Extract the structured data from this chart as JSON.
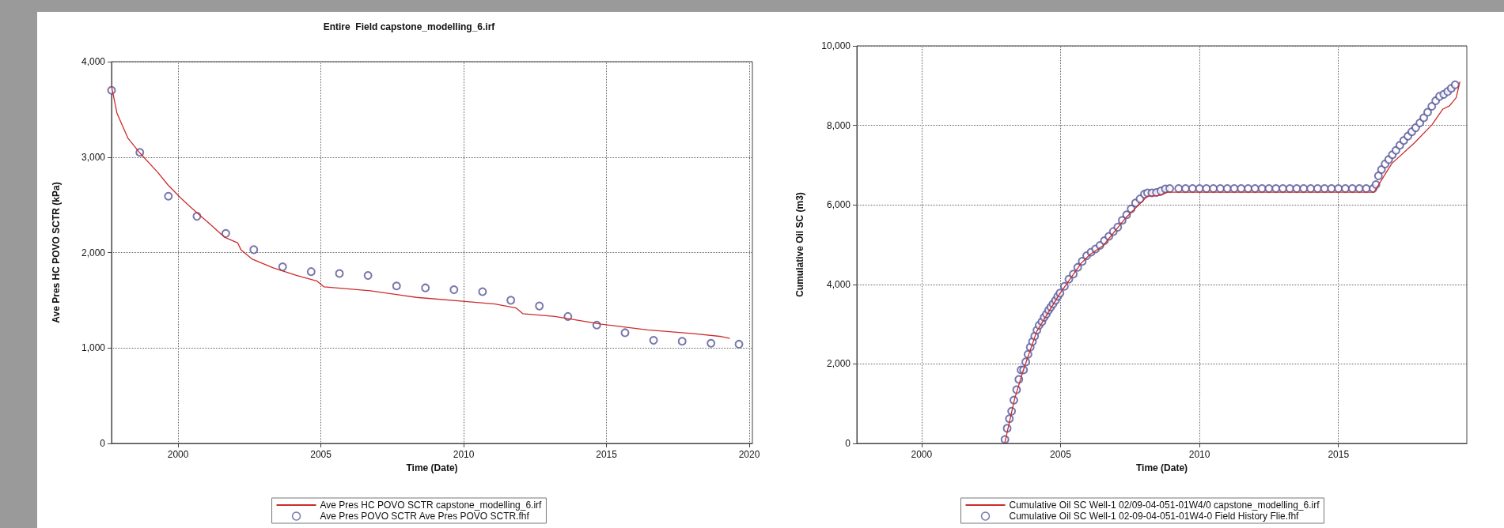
{
  "chart_data": [
    {
      "type": "line",
      "title": "Entire  Field capstone_modelling_6.irf",
      "xlabel": "Time (Date)",
      "ylabel": "Ave Pres HC POVO SCTR (kPa)",
      "xlim": [
        1997.67,
        2020.11
      ],
      "xticks": [
        2000,
        2005,
        2010,
        2015,
        2020
      ],
      "ylim": [
        0,
        4000
      ],
      "yticks": [
        {
          "value": 0,
          "label": "0"
        },
        {
          "value": 1000,
          "label": "1,000"
        },
        {
          "value": 2000,
          "label": "2,000"
        },
        {
          "value": 3000,
          "label": "3,000"
        },
        {
          "value": 4000,
          "label": "4,000"
        }
      ],
      "grid": true,
      "legend": "bottom",
      "series": [
        {
          "name": "Ave Pres HC POVO SCTR capstone_modelling_6.irf",
          "type": "line",
          "color": "#cc2b2b",
          "x": [
            1997.67,
            1997.86,
            1998.24,
            1998.64,
            1999.29,
            1999.64,
            2000.1,
            2000.42,
            2001.07,
            2001.63,
            2002.09,
            2002.2,
            2002.6,
            2003.33,
            2004.14,
            2004.87,
            2005.11,
            2006.73,
            2008.35,
            2009.97,
            2011.1,
            2011.83,
            2012.07,
            2013.2,
            2014.82,
            2016.44,
            2018.06,
            2019.03,
            2019.32
          ],
          "values": [
            3740,
            3460,
            3200,
            3050,
            2840,
            2710,
            2570,
            2480,
            2310,
            2160,
            2100,
            2030,
            1930,
            1840,
            1760,
            1700,
            1640,
            1600,
            1530,
            1490,
            1460,
            1420,
            1360,
            1330,
            1250,
            1190,
            1150,
            1120,
            1100
          ]
        },
        {
          "name": "Ave Pres POVO SCTR Ave Pres POVO SCTR.fhf",
          "type": "scatter",
          "marker": "circle",
          "color": "#55559a",
          "x": [
            1997.67,
            1998.66,
            1999.66,
            2000.66,
            2001.67,
            2002.65,
            2003.66,
            2004.66,
            2005.65,
            2006.65,
            2007.65,
            2008.66,
            2009.66,
            2010.66,
            2011.65,
            2012.65,
            2013.65,
            2014.66,
            2015.65,
            2016.65,
            2017.65,
            2018.66,
            2019.64
          ],
          "values": [
            3700,
            3050,
            2590,
            2380,
            2200,
            2030,
            1850,
            1800,
            1780,
            1760,
            1650,
            1630,
            1610,
            1590,
            1500,
            1440,
            1330,
            1240,
            1160,
            1080,
            1070,
            1050,
            1040
          ]
        }
      ]
    },
    {
      "type": "line",
      "xlabel": "Time (Date)",
      "ylabel": "Cumulative Oil SC (m3)",
      "xlim": [
        1997.67,
        2019.62
      ],
      "xticks": [
        2000,
        2005,
        2010,
        2015
      ],
      "ylim": [
        0,
        10000
      ],
      "yticks": [
        {
          "value": 0,
          "label": "0"
        },
        {
          "value": 2000,
          "label": "2,000"
        },
        {
          "value": 4000,
          "label": "4,000"
        },
        {
          "value": 6000,
          "label": "6,000"
        },
        {
          "value": 8000,
          "label": "8,000"
        },
        {
          "value": 10000,
          "label": "10,000"
        }
      ],
      "grid": true,
      "legend": "bottom",
      "series": [
        {
          "name": "Cumulative Oil SC Well-1 02/09-04-051-01W4/0 capstone_modelling_6.irf",
          "type": "line",
          "color": "#cc2b2b",
          "x": [
            2002.99,
            2003.34,
            2003.66,
            2004.14,
            2004.94,
            2005.74,
            2006.06,
            2006.54,
            2007.34,
            2008.13,
            2008.61,
            2008.85,
            2016.28,
            2016.92,
            2017.72,
            2018.36,
            2018.76,
            2019.0,
            2019.24,
            2019.37
          ],
          "values": [
            0,
            1100,
            1840,
            2810,
            3730,
            4530,
            4750,
            4980,
            5670,
            6220,
            6240,
            6320,
            6320,
            7040,
            7550,
            8010,
            8410,
            8490,
            8700,
            9100
          ]
        },
        {
          "name": "Cumulative Oil SC Well-1 02-09-04-051-01W4-0 Field History Flie.fhf",
          "type": "scatter",
          "marker": "circle",
          "color": "#55559a",
          "x": [
            2003.0,
            2003.08,
            2003.16,
            2003.24,
            2003.32,
            2003.42,
            2003.5,
            2003.58,
            2003.67,
            2003.75,
            2003.83,
            2003.91,
            2003.99,
            2004.07,
            2004.15,
            2004.23,
            2004.33,
            2004.41,
            2004.49,
            2004.57,
            2004.65,
            2004.73,
            2004.82,
            2004.9,
            2004.98,
            2005.14,
            2005.3,
            2005.46,
            2005.62,
            2005.78,
            2005.94,
            2006.1,
            2006.26,
            2006.42,
            2006.58,
            2006.74,
            2006.9,
            2007.06,
            2007.22,
            2007.38,
            2007.54,
            2007.7,
            2007.86,
            2008.02,
            2008.13,
            2008.29,
            2008.45,
            2008.61,
            2008.77,
            2008.93,
            2009.25,
            2009.5,
            2009.75,
            2010.0,
            2010.25,
            2010.5,
            2010.75,
            2011.0,
            2011.25,
            2011.5,
            2011.75,
            2012.0,
            2012.25,
            2012.5,
            2012.75,
            2013.0,
            2013.25,
            2013.5,
            2013.75,
            2014.0,
            2014.25,
            2014.5,
            2014.75,
            2015.0,
            2015.25,
            2015.5,
            2015.75,
            2016.0,
            2016.25,
            2016.35,
            2016.44,
            2016.55,
            2016.68,
            2016.81,
            2016.94,
            2017.07,
            2017.21,
            2017.35,
            2017.5,
            2017.64,
            2017.78,
            2017.93,
            2018.07,
            2018.21,
            2018.36,
            2018.5,
            2018.64,
            2018.79,
            2018.93,
            2019.06,
            2019.2
          ],
          "values": [
            100,
            380,
            620,
            810,
            1090,
            1350,
            1610,
            1850,
            1850,
            2050,
            2240,
            2420,
            2560,
            2700,
            2850,
            2970,
            3060,
            3170,
            3250,
            3350,
            3430,
            3510,
            3600,
            3700,
            3780,
            3950,
            4130,
            4260,
            4430,
            4580,
            4720,
            4810,
            4890,
            4980,
            5100,
            5210,
            5330,
            5440,
            5610,
            5750,
            5900,
            6050,
            6150,
            6270,
            6300,
            6300,
            6310,
            6350,
            6400,
            6410,
            6410,
            6410,
            6410,
            6410,
            6410,
            6410,
            6410,
            6410,
            6410,
            6410,
            6410,
            6410,
            6410,
            6410,
            6410,
            6410,
            6410,
            6410,
            6410,
            6410,
            6410,
            6410,
            6410,
            6410,
            6410,
            6410,
            6410,
            6410,
            6410,
            6510,
            6730,
            6890,
            7030,
            7140,
            7260,
            7370,
            7500,
            7620,
            7730,
            7840,
            7940,
            8060,
            8190,
            8330,
            8480,
            8620,
            8730,
            8780,
            8850,
            8930,
            9020
          ]
        }
      ]
    }
  ]
}
